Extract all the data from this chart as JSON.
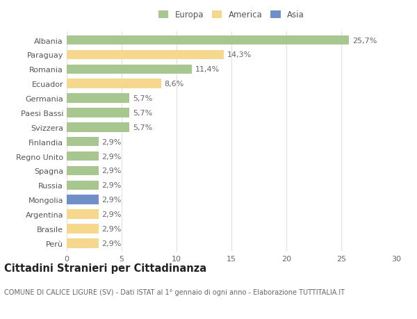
{
  "countries": [
    "Albania",
    "Paraguay",
    "Romania",
    "Ecuador",
    "Germania",
    "Paesi Bassi",
    "Svizzera",
    "Finlandia",
    "Regno Unito",
    "Spagna",
    "Russia",
    "Mongolia",
    "Argentina",
    "Brasile",
    "Perù"
  ],
  "values": [
    25.7,
    14.3,
    11.4,
    8.6,
    5.7,
    5.7,
    5.7,
    2.9,
    2.9,
    2.9,
    2.9,
    2.9,
    2.9,
    2.9,
    2.9
  ],
  "labels": [
    "25,7%",
    "14,3%",
    "11,4%",
    "8,6%",
    "5,7%",
    "5,7%",
    "5,7%",
    "2,9%",
    "2,9%",
    "2,9%",
    "2,9%",
    "2,9%",
    "2,9%",
    "2,9%",
    "2,9%"
  ],
  "continents": [
    "Europa",
    "America",
    "Europa",
    "America",
    "Europa",
    "Europa",
    "Europa",
    "Europa",
    "Europa",
    "Europa",
    "Europa",
    "Asia",
    "America",
    "America",
    "America"
  ],
  "colors": {
    "Europa": "#a8c68f",
    "America": "#f5d78e",
    "Asia": "#6e8fc9"
  },
  "legend_labels": [
    "Europa",
    "America",
    "Asia"
  ],
  "legend_colors": [
    "#a8c68f",
    "#f5d78e",
    "#6e8fc9"
  ],
  "xlim": [
    0,
    30
  ],
  "xticks": [
    0,
    5,
    10,
    15,
    20,
    25,
    30
  ],
  "title": "Cittadini Stranieri per Cittadinanza",
  "subtitle": "COMUNE DI CALICE LIGURE (SV) - Dati ISTAT al 1° gennaio di ogni anno - Elaborazione TUTTITALIA.IT",
  "bg_color": "#ffffff",
  "grid_color": "#e0e0e0",
  "bar_height": 0.65,
  "label_fontsize": 8.0,
  "tick_fontsize": 8.0,
  "title_fontsize": 10.5,
  "subtitle_fontsize": 7.0
}
